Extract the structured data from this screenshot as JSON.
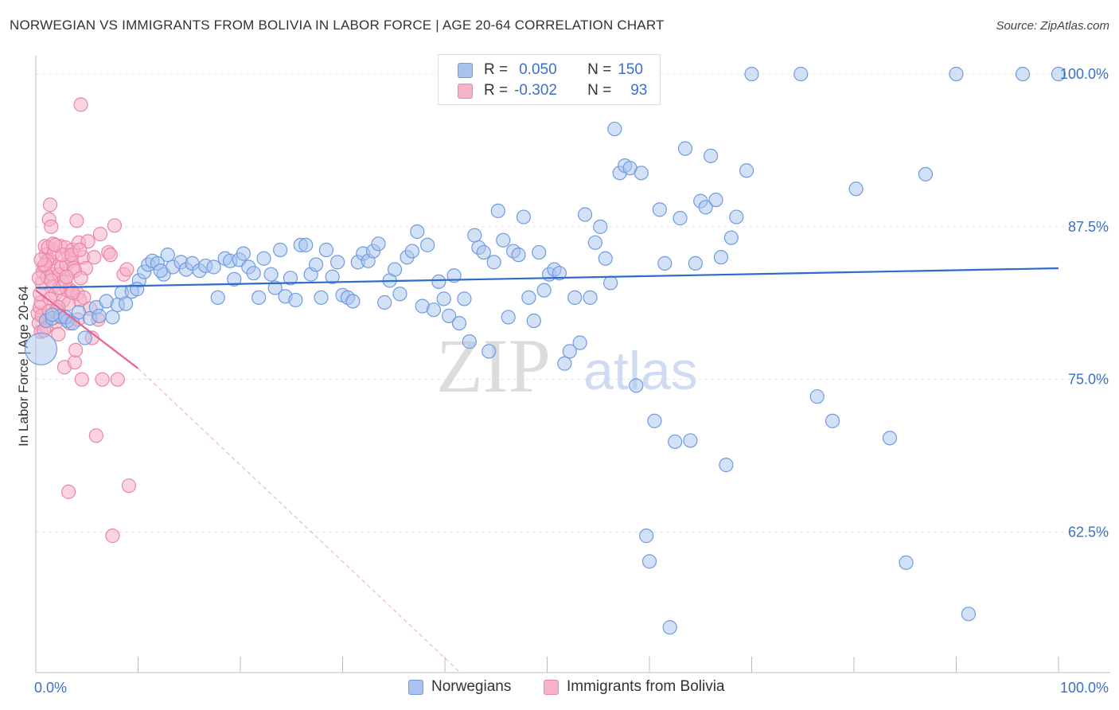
{
  "title": "NORWEGIAN VS IMMIGRANTS FROM BOLIVIA IN LABOR FORCE | AGE 20-64 CORRELATION CHART",
  "source": "Source: ZipAtlas.com",
  "watermark": {
    "zip": "ZIP",
    "atlas": "atlas"
  },
  "legend": {
    "series1": {
      "r_label": "R =",
      "r_value": "0.050",
      "n_label": "N =",
      "n_value": "150"
    },
    "series2": {
      "r_label": "R =",
      "r_value": "-0.302",
      "n_label": "N =",
      "n_value": "93"
    }
  },
  "colors": {
    "blue_fill": "#a8c4ee",
    "blue_stroke": "#6f9be0",
    "blue_line": "#2d6cc8",
    "pink_fill": "#f6b3c8",
    "pink_stroke": "#ec85a5",
    "pink_line": "#e8628c",
    "axis_text": "#3c70c8",
    "grid": "#e4e4e4"
  },
  "chart_data": {
    "type": "scatter",
    "title": "NORWEGIAN VS IMMIGRANTS FROM BOLIVIA IN LABOR FORCE | AGE 20-64 CORRELATION CHART",
    "xlabel": "",
    "ylabel": "In Labor Force | Age 20-64",
    "xlim": [
      0,
      100
    ],
    "ylim": [
      51.0,
      101.5
    ],
    "x_tick_labels": [
      "0.0%",
      "100.0%"
    ],
    "y_ticks": [
      62.5,
      75.0,
      87.5,
      100.0
    ],
    "y_tick_labels": [
      "62.5%",
      "75.0%",
      "87.5%",
      "100.0%"
    ],
    "legend_position": "top-center",
    "series": [
      {
        "name": "Norwegians",
        "r": 0.05,
        "n": 150,
        "trend": {
          "x": [
            0,
            100
          ],
          "y": [
            82.5,
            84.1
          ]
        },
        "points": [
          [
            0.5,
            77.5,
            1
          ],
          [
            1.0,
            79.8,
            0
          ],
          [
            1.6,
            80.0,
            0
          ],
          [
            2.4,
            80.2,
            0
          ],
          [
            3.1,
            79.8,
            0
          ],
          [
            4.2,
            80.5,
            0
          ],
          [
            4.8,
            78.4,
            0
          ],
          [
            5.3,
            80.0,
            0
          ],
          [
            5.9,
            80.9,
            0
          ],
          [
            6.9,
            81.4,
            0
          ],
          [
            7.5,
            80.1,
            0
          ],
          [
            8.0,
            81.1,
            0
          ],
          [
            8.4,
            82.1,
            0
          ],
          [
            8.8,
            81.2,
            0
          ],
          [
            9.4,
            82.2,
            0
          ],
          [
            10.1,
            83.1,
            0
          ],
          [
            10.6,
            83.8,
            0
          ],
          [
            11.0,
            84.4,
            0
          ],
          [
            11.4,
            84.7,
            0
          ],
          [
            11.9,
            84.5,
            0
          ],
          [
            12.5,
            83.6,
            0
          ],
          [
            12.9,
            85.2,
            0
          ],
          [
            13.4,
            84.2,
            0
          ],
          [
            14.2,
            84.6,
            0
          ],
          [
            14.7,
            84.0,
            0
          ],
          [
            15.3,
            84.5,
            0
          ],
          [
            16.0,
            83.9,
            0
          ],
          [
            16.6,
            84.3,
            0
          ],
          [
            17.4,
            84.2,
            0
          ],
          [
            17.8,
            81.7,
            0
          ],
          [
            18.5,
            84.9,
            0
          ],
          [
            19.0,
            84.7,
            0
          ],
          [
            19.4,
            83.2,
            0
          ],
          [
            19.9,
            84.8,
            0
          ],
          [
            20.3,
            85.3,
            0
          ],
          [
            20.8,
            84.2,
            0
          ],
          [
            21.3,
            83.7,
            0
          ],
          [
            21.8,
            81.7,
            0
          ],
          [
            22.3,
            84.9,
            0
          ],
          [
            23.0,
            83.6,
            0
          ],
          [
            23.4,
            82.5,
            0
          ],
          [
            23.9,
            85.6,
            0
          ],
          [
            24.4,
            81.8,
            0
          ],
          [
            24.9,
            83.3,
            0
          ],
          [
            25.4,
            81.5,
            0
          ],
          [
            25.9,
            86.0,
            0
          ],
          [
            26.4,
            86.0,
            0
          ],
          [
            26.9,
            83.6,
            0
          ],
          [
            27.4,
            84.4,
            0
          ],
          [
            27.9,
            81.7,
            0
          ],
          [
            28.4,
            85.6,
            0
          ],
          [
            29.0,
            83.4,
            0
          ],
          [
            29.5,
            84.6,
            0
          ],
          [
            30.0,
            81.9,
            0
          ],
          [
            30.5,
            81.7,
            0
          ],
          [
            31.0,
            81.4,
            0
          ],
          [
            31.5,
            84.6,
            0
          ],
          [
            32.0,
            85.3,
            0
          ],
          [
            32.5,
            84.7,
            0
          ],
          [
            33.0,
            85.5,
            0
          ],
          [
            33.5,
            86.1,
            0
          ],
          [
            34.1,
            81.3,
            0
          ],
          [
            34.6,
            83.1,
            0
          ],
          [
            35.1,
            84.0,
            0
          ],
          [
            35.6,
            82.0,
            0
          ],
          [
            36.3,
            85.0,
            0
          ],
          [
            36.8,
            85.5,
            0
          ],
          [
            37.3,
            87.1,
            0
          ],
          [
            37.8,
            81.0,
            0
          ],
          [
            38.3,
            86.0,
            0
          ],
          [
            38.9,
            80.7,
            0
          ],
          [
            39.4,
            83.0,
            0
          ],
          [
            39.9,
            81.6,
            0
          ],
          [
            40.4,
            80.2,
            0
          ],
          [
            40.9,
            83.5,
            0
          ],
          [
            41.4,
            79.6,
            0
          ],
          [
            41.9,
            81.6,
            0
          ],
          [
            42.4,
            78.1,
            0
          ],
          [
            42.9,
            86.8,
            0
          ],
          [
            43.3,
            85.8,
            0
          ],
          [
            43.8,
            85.4,
            0
          ],
          [
            44.3,
            77.3,
            0
          ],
          [
            44.8,
            84.6,
            0
          ],
          [
            45.2,
            88.8,
            0
          ],
          [
            45.7,
            86.4,
            0
          ],
          [
            46.2,
            80.1,
            0
          ],
          [
            46.7,
            85.5,
            0
          ],
          [
            47.2,
            85.2,
            0
          ],
          [
            47.7,
            88.3,
            0
          ],
          [
            48.2,
            81.7,
            0
          ],
          [
            48.7,
            79.8,
            0
          ],
          [
            49.2,
            85.4,
            0
          ],
          [
            49.7,
            82.3,
            0
          ],
          [
            50.2,
            83.6,
            0
          ],
          [
            50.7,
            84.0,
            0
          ],
          [
            51.2,
            83.7,
            0
          ],
          [
            51.7,
            76.3,
            0
          ],
          [
            52.2,
            77.3,
            0
          ],
          [
            52.7,
            81.7,
            0
          ],
          [
            53.2,
            78.0,
            0
          ],
          [
            53.7,
            88.5,
            0
          ],
          [
            54.2,
            81.7,
            0
          ],
          [
            54.7,
            86.2,
            0
          ],
          [
            55.2,
            87.5,
            0
          ],
          [
            55.7,
            84.9,
            0
          ],
          [
            56.2,
            82.9,
            0
          ],
          [
            56.6,
            95.5,
            0
          ],
          [
            57.1,
            91.9,
            0
          ],
          [
            57.6,
            92.5,
            0
          ],
          [
            58.1,
            92.3,
            0
          ],
          [
            58.7,
            74.5,
            0
          ],
          [
            59.2,
            91.9,
            0
          ],
          [
            59.7,
            62.2,
            0
          ],
          [
            60.0,
            60.1,
            0
          ],
          [
            60.5,
            71.6,
            0
          ],
          [
            61.0,
            88.9,
            0
          ],
          [
            61.5,
            84.5,
            0
          ],
          [
            62.0,
            54.7,
            0
          ],
          [
            62.5,
            69.9,
            0
          ],
          [
            63.0,
            88.2,
            0
          ],
          [
            63.5,
            93.9,
            0
          ],
          [
            64.0,
            70.0,
            0
          ],
          [
            64.5,
            84.5,
            0
          ],
          [
            65.0,
            89.6,
            0
          ],
          [
            65.5,
            89.1,
            0
          ],
          [
            66.0,
            93.3,
            0
          ],
          [
            66.5,
            89.7,
            0
          ],
          [
            67.0,
            85.0,
            0
          ],
          [
            67.5,
            68.0,
            0
          ],
          [
            68.0,
            86.6,
            0
          ],
          [
            68.5,
            88.3,
            0
          ],
          [
            69.5,
            92.1,
            0
          ],
          [
            70.0,
            100.0,
            0
          ],
          [
            74.8,
            100.0,
            0
          ],
          [
            76.4,
            73.6,
            0
          ],
          [
            77.9,
            71.6,
            0
          ],
          [
            80.2,
            90.6,
            0
          ],
          [
            83.5,
            70.2,
            0
          ],
          [
            85.1,
            60.0,
            0
          ],
          [
            87.0,
            91.8,
            0
          ],
          [
            90.0,
            100.0,
            0
          ],
          [
            91.2,
            55.8,
            0
          ],
          [
            96.5,
            100.0,
            0
          ],
          [
            100.0,
            100.0,
            0
          ],
          [
            1.6,
            80.3,
            0
          ],
          [
            2.9,
            80.1,
            0
          ],
          [
            3.6,
            79.6,
            0
          ],
          [
            6.2,
            80.2,
            0
          ],
          [
            9.9,
            82.4,
            0
          ],
          [
            12.2,
            83.9,
            0
          ]
        ]
      },
      {
        "name": "Immigrants from Bolivia",
        "r": -0.302,
        "n": 93,
        "trend": {
          "x": [
            0,
            10.0
          ],
          "y": [
            82.3,
            75.9
          ]
        },
        "trend_dashed": {
          "x": [
            10.0,
            41.5
          ],
          "y": [
            75.9,
            51.0
          ]
        },
        "points": [
          [
            0.2,
            80.4
          ],
          [
            0.3,
            79.6
          ],
          [
            0.4,
            80.9
          ],
          [
            0.5,
            78.9
          ],
          [
            0.5,
            81.3
          ],
          [
            0.6,
            82.9
          ],
          [
            0.7,
            83.8
          ],
          [
            0.8,
            84.3
          ],
          [
            0.9,
            85.9
          ],
          [
            1.0,
            85.2
          ],
          [
            1.0,
            79.3
          ],
          [
            1.1,
            83.4
          ],
          [
            1.2,
            85.8
          ],
          [
            1.3,
            84.8
          ],
          [
            1.3,
            88.1
          ],
          [
            1.4,
            89.3
          ],
          [
            1.5,
            87.5
          ],
          [
            1.6,
            83.6
          ],
          [
            1.7,
            82.6
          ],
          [
            1.8,
            85.4
          ],
          [
            1.9,
            82.0
          ],
          [
            2.0,
            79.7
          ],
          [
            2.1,
            84.2
          ],
          [
            2.2,
            78.7
          ],
          [
            2.3,
            83.6
          ],
          [
            2.4,
            85.9
          ],
          [
            2.5,
            84.2
          ],
          [
            2.6,
            83.0
          ],
          [
            2.7,
            81.5
          ],
          [
            2.8,
            76.0
          ],
          [
            2.9,
            85.8
          ],
          [
            3.0,
            84.4
          ],
          [
            3.1,
            82.3
          ],
          [
            3.2,
            85.1
          ],
          [
            3.3,
            79.6
          ],
          [
            3.4,
            82.3
          ],
          [
            3.5,
            84.8
          ],
          [
            3.6,
            85.6
          ],
          [
            3.7,
            84.1
          ],
          [
            3.8,
            76.4
          ],
          [
            3.9,
            77.4
          ],
          [
            4.0,
            88.0
          ],
          [
            4.1,
            82.0
          ],
          [
            4.2,
            86.2
          ],
          [
            4.3,
            81.5
          ],
          [
            4.4,
            97.5
          ],
          [
            4.5,
            75.0
          ],
          [
            4.6,
            85.0
          ],
          [
            4.7,
            81.7
          ],
          [
            4.9,
            84.1
          ],
          [
            5.1,
            86.3
          ],
          [
            5.3,
            80.8
          ],
          [
            5.5,
            78.4
          ],
          [
            5.7,
            85.0
          ],
          [
            5.9,
            70.4
          ],
          [
            6.1,
            79.9
          ],
          [
            6.3,
            86.9
          ],
          [
            6.5,
            75.0
          ],
          [
            7.1,
            85.4
          ],
          [
            7.3,
            85.2
          ],
          [
            7.5,
            62.2
          ],
          [
            7.7,
            87.6
          ],
          [
            8.0,
            75.0
          ],
          [
            8.6,
            83.6
          ],
          [
            8.9,
            84.0
          ],
          [
            9.1,
            66.3
          ],
          [
            3.2,
            65.8
          ],
          [
            0.3,
            83.3
          ],
          [
            0.4,
            82.0
          ],
          [
            0.6,
            80.2
          ],
          [
            0.8,
            79.0
          ],
          [
            1.1,
            84.7
          ],
          [
            1.4,
            81.6
          ],
          [
            1.7,
            86.1
          ],
          [
            2.0,
            80.7
          ],
          [
            2.3,
            82.5
          ],
          [
            2.6,
            85.2
          ],
          [
            2.9,
            83.0
          ],
          [
            3.2,
            81.2
          ],
          [
            3.5,
            85.2
          ],
          [
            3.8,
            83.9
          ],
          [
            4.1,
            79.9
          ],
          [
            4.4,
            83.3
          ],
          [
            0.9,
            84.4
          ],
          [
            1.3,
            80.6
          ],
          [
            1.9,
            86.0
          ],
          [
            2.5,
            80.1
          ],
          [
            3.0,
            83.4
          ],
          [
            3.6,
            82.1
          ],
          [
            4.3,
            85.6
          ],
          [
            0.5,
            84.8
          ],
          [
            1.5,
            83.1
          ],
          [
            2.2,
            80.9
          ]
        ]
      }
    ]
  }
}
